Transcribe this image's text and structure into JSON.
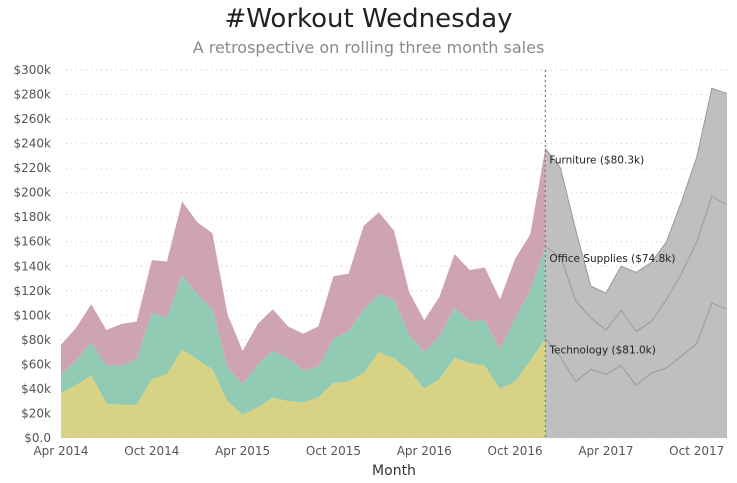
{
  "chart_data": {
    "type": "area",
    "title": "#Workout Wednesday",
    "subtitle": "A retrospective on rolling three month sales",
    "xlabel": "Month",
    "ylabel": "",
    "ylim": [
      0,
      300000
    ],
    "yticks": [
      0,
      20000,
      40000,
      60000,
      80000,
      100000,
      120000,
      140000,
      160000,
      180000,
      200000,
      220000,
      240000,
      260000,
      280000,
      300000
    ],
    "ytick_labels": [
      "$0.0",
      "$20k",
      "$40k",
      "$60k",
      "$80k",
      "$100k",
      "$120k",
      "$140k",
      "$160k",
      "$180k",
      "$200k",
      "$220k",
      "$240k",
      "$260k",
      "$280k",
      "$300k"
    ],
    "xtick_labels": [
      {
        "label": "Apr 2014",
        "index": 0
      },
      {
        "label": "Oct 2014",
        "index": 6
      },
      {
        "label": "Apr 2015",
        "index": 12
      },
      {
        "label": "Oct 2015",
        "index": 18
      },
      {
        "label": "Apr 2016",
        "index": 24
      },
      {
        "label": "Oct 2016",
        "index": 30
      },
      {
        "label": "Apr 2017",
        "index": 36
      },
      {
        "label": "Oct 2017",
        "index": 42
      }
    ],
    "months_count": 45,
    "actual_last_index": 32,
    "series": [
      {
        "name": "Technology",
        "color": "#d8d384",
        "values": [
          37000,
          43000,
          51000,
          28000,
          27000,
          27000,
          48000,
          52000,
          72000,
          64000,
          56000,
          30000,
          19000,
          25000,
          33000,
          30000,
          29000,
          33000,
          45000,
          46000,
          53000,
          70000,
          65000,
          55000,
          40000,
          48000,
          65000,
          61000,
          59000,
          40000,
          46000,
          63000,
          81000
        ]
      },
      {
        "name": "Office Supplies",
        "color": "#92cbb3",
        "values": [
          15000,
          20000,
          27000,
          31000,
          32000,
          37000,
          54000,
          46000,
          61000,
          53000,
          49000,
          27000,
          25000,
          35000,
          38000,
          35000,
          26000,
          25000,
          36000,
          41000,
          52000,
          47000,
          48000,
          29000,
          30000,
          35000,
          41000,
          34000,
          37000,
          32000,
          52000,
          57000,
          74800
        ]
      },
      {
        "name": "Furniture",
        "color": "#cea4b5",
        "values": [
          24000,
          27000,
          31000,
          29000,
          34000,
          31000,
          43000,
          46000,
          60000,
          59000,
          62000,
          44000,
          27000,
          33000,
          34000,
          26000,
          30000,
          33000,
          51000,
          47000,
          68000,
          67000,
          56000,
          35000,
          26000,
          32000,
          44000,
          42000,
          43000,
          41000,
          48000,
          46000,
          80300
        ]
      }
    ],
    "forecast_series": {
      "color": "#bfbfbf",
      "line_color": "#9a9a9a",
      "technology": [
        81000,
        66000,
        46000,
        56000,
        52000,
        59000,
        43000,
        53000,
        57000,
        67000,
        77000,
        110000,
        105000
      ],
      "office_supplies_cum": [
        155800,
        148000,
        112000,
        98000,
        88000,
        104000,
        87000,
        95000,
        113000,
        134000,
        160000,
        197000,
        190000
      ],
      "total": [
        236100,
        220000,
        170000,
        124000,
        118000,
        140000,
        135000,
        143000,
        160000,
        193000,
        229000,
        285000,
        281000
      ]
    },
    "annotations": [
      {
        "label": "Furniture ($80.3k)",
        "value": 236100
      },
      {
        "label": "Office Supplies ($74.8k)",
        "value": 155800
      },
      {
        "label": "Technology ($81.0k)",
        "value": 81000
      }
    ]
  }
}
